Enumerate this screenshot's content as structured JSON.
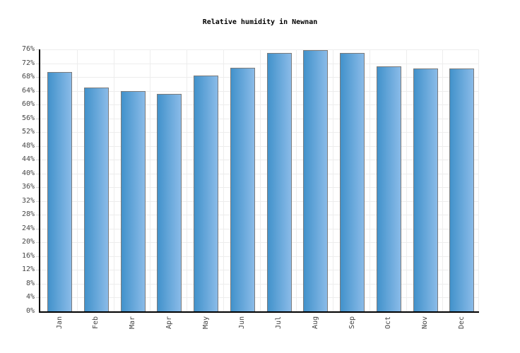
{
  "chart_data": {
    "type": "bar",
    "title": "Relative humidity in Newnan",
    "categories": [
      "Jan",
      "Feb",
      "Mar",
      "Apr",
      "May",
      "Jun",
      "Jul",
      "Aug",
      "Sep",
      "Oct",
      "Nov",
      "Dec"
    ],
    "values": [
      69.5,
      65,
      64,
      63,
      68.5,
      70.7,
      74.9,
      75.7,
      75,
      71,
      70.5,
      70.4
    ],
    "unit": "%",
    "xlabel": "",
    "ylabel": "",
    "ylim": [
      0,
      76
    ],
    "y_tick_step": 4,
    "y_tick_labels": [
      "0%",
      "4%",
      "8%",
      "12%",
      "16%",
      "20%",
      "24%",
      "28%",
      "32%",
      "36%",
      "40%",
      "44%",
      "48%",
      "52%",
      "56%",
      "60%",
      "64%",
      "68%",
      "72%",
      "76%"
    ],
    "grid": "both",
    "legend_position": "none",
    "colors": {
      "bar_gradient_left": "#4292cb",
      "bar_gradient_right": "#8abbe8",
      "bar_border": "#7b7b7b",
      "grid_line": "#ededed",
      "tick_mark": "#d9d9d9",
      "axis_line": "#000000",
      "tick_label": "#464646",
      "title": "#000000"
    }
  }
}
